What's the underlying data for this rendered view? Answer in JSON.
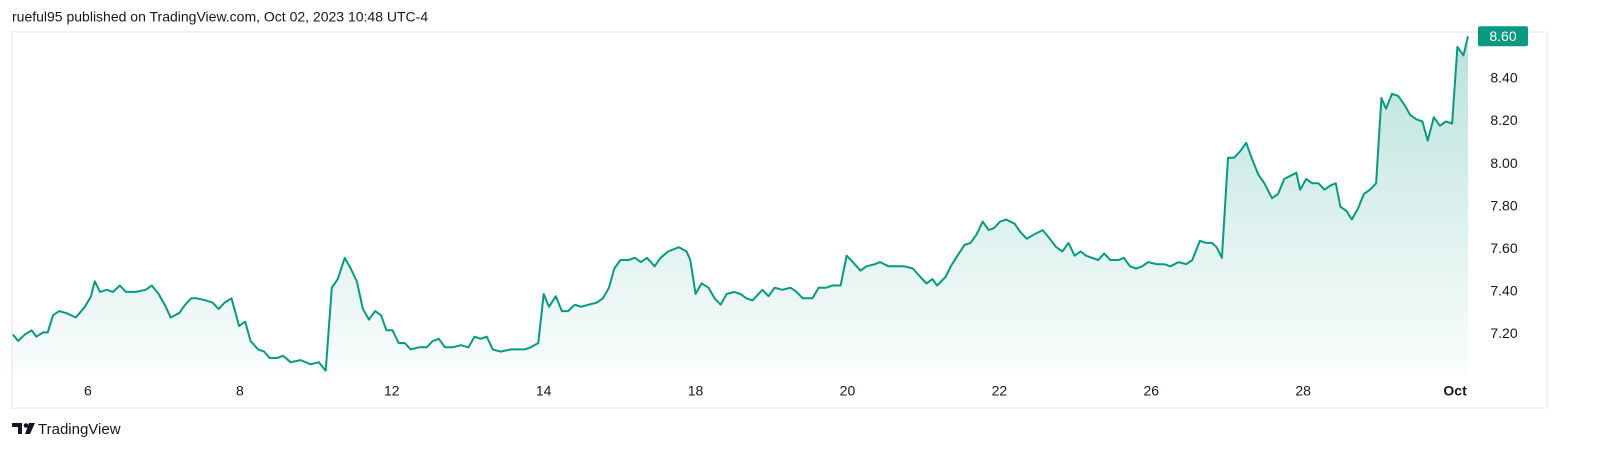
{
  "header": "rueful95 published on TradingView.com, Oct 02, 2023 10:48 UTC-4",
  "footer": "TradingView",
  "chart_data": {
    "type": "area",
    "color": "#089981",
    "last_price_label": "8.60",
    "xlim": [
      0,
      19.17
    ],
    "ylim": [
      7.01,
      8.62
    ],
    "xticks": [
      {
        "value": 1,
        "label": "6"
      },
      {
        "value": 3,
        "label": "8"
      },
      {
        "value": 5,
        "label": "12"
      },
      {
        "value": 7,
        "label": "14"
      },
      {
        "value": 9,
        "label": "18"
      },
      {
        "value": 11,
        "label": "20"
      },
      {
        "value": 13,
        "label": "22"
      },
      {
        "value": 15,
        "label": "26"
      },
      {
        "value": 17,
        "label": "28"
      },
      {
        "value": 19,
        "label": "Oct"
      }
    ],
    "yticks": [
      {
        "value": 7.2,
        "label": "7.20"
      },
      {
        "value": 7.4,
        "label": "7.40"
      },
      {
        "value": 7.6,
        "label": "7.60"
      },
      {
        "value": 7.8,
        "label": "7.80"
      },
      {
        "value": 8.0,
        "label": "8.00"
      },
      {
        "value": 8.2,
        "label": "8.20"
      },
      {
        "value": 8.4,
        "label": "8.40"
      }
    ],
    "x": [
      0.01,
      0.08,
      0.17,
      0.26,
      0.32,
      0.41,
      0.47,
      0.54,
      0.62,
      0.72,
      0.84,
      0.96,
      1.04,
      1.09,
      1.16,
      1.25,
      1.33,
      1.42,
      1.5,
      1.63,
      1.76,
      1.84,
      1.93,
      2.01,
      2.09,
      2.2,
      2.28,
      2.36,
      2.43,
      2.55,
      2.64,
      2.72,
      2.8,
      2.89,
      2.99,
      3.07,
      3.14,
      3.24,
      3.32,
      3.39,
      3.49,
      3.57,
      3.67,
      3.8,
      3.93,
      4.04,
      4.13,
      4.21,
      4.29,
      4.38,
      4.46,
      4.54,
      4.62,
      4.7,
      4.78,
      4.86,
      4.93,
      5.01,
      5.09,
      5.17,
      5.25,
      5.36,
      5.46,
      5.54,
      5.62,
      5.7,
      5.8,
      5.91,
      6.01,
      6.09,
      6.17,
      6.25,
      6.33,
      6.43,
      6.57,
      6.67,
      6.75,
      6.83,
      6.93,
      7.0,
      7.07,
      7.16,
      7.24,
      7.32,
      7.41,
      7.49,
      7.59,
      7.7,
      7.78,
      7.86,
      7.93,
      8.01,
      8.12,
      8.2,
      8.28,
      8.36,
      8.46,
      8.54,
      8.64,
      8.78,
      8.88,
      8.93,
      9.0,
      9.08,
      9.17,
      9.25,
      9.33,
      9.41,
      9.51,
      9.59,
      9.67,
      9.75,
      9.88,
      9.96,
      10.04,
      10.14,
      10.25,
      10.33,
      10.41,
      10.54,
      10.62,
      10.72,
      10.8,
      10.91,
      10.99,
      11.07,
      11.17,
      11.25,
      11.36,
      11.43,
      11.54,
      11.64,
      11.75,
      11.86,
      11.96,
      12.04,
      12.12,
      12.18,
      12.29,
      12.36,
      12.43,
      12.54,
      12.62,
      12.7,
      12.78,
      12.86,
      12.93,
      13.01,
      13.09,
      13.2,
      13.28,
      13.36,
      13.46,
      13.57,
      13.64,
      13.75,
      13.83,
      13.91,
      13.99,
      14.07,
      14.14,
      14.22,
      14.3,
      14.38,
      14.46,
      14.57,
      14.64,
      14.72,
      14.8,
      14.88,
      14.96,
      15.07,
      15.17,
      15.25,
      15.36,
      15.46,
      15.54,
      15.64,
      15.72,
      15.8,
      15.86,
      15.93,
      16.01,
      16.09,
      16.17,
      16.25,
      16.33,
      16.41,
      16.49,
      16.59,
      16.67,
      16.75,
      16.86,
      16.91,
      16.96,
      17.04,
      17.12,
      17.2,
      17.28,
      17.36,
      17.43,
      17.49,
      17.57,
      17.64,
      17.72,
      17.8,
      17.88,
      17.96,
      18.03,
      18.09,
      18.17,
      18.25,
      18.33,
      18.41,
      18.49,
      18.57,
      18.64,
      18.72,
      18.8,
      18.88,
      18.96,
      19.03,
      19.11,
      19.17
    ],
    "values": [
      7.2,
      7.17,
      7.2,
      7.22,
      7.19,
      7.21,
      7.21,
      7.29,
      7.31,
      7.3,
      7.28,
      7.33,
      7.38,
      7.45,
      7.4,
      7.41,
      7.4,
      7.43,
      7.4,
      7.4,
      7.41,
      7.43,
      7.39,
      7.34,
      7.28,
      7.3,
      7.34,
      7.37,
      7.37,
      7.36,
      7.35,
      7.32,
      7.35,
      7.37,
      7.24,
      7.26,
      7.17,
      7.13,
      7.12,
      7.09,
      7.09,
      7.1,
      7.07,
      7.08,
      7.06,
      7.07,
      7.03,
      7.42,
      7.46,
      7.56,
      7.51,
      7.45,
      7.32,
      7.27,
      7.31,
      7.29,
      7.22,
      7.22,
      7.16,
      7.16,
      7.13,
      7.14,
      7.14,
      7.17,
      7.18,
      7.14,
      7.14,
      7.15,
      7.14,
      7.19,
      7.18,
      7.19,
      7.13,
      7.12,
      7.13,
      7.13,
      7.13,
      7.14,
      7.16,
      7.39,
      7.33,
      7.38,
      7.31,
      7.31,
      7.34,
      7.33,
      7.34,
      7.35,
      7.37,
      7.42,
      7.51,
      7.55,
      7.55,
      7.56,
      7.54,
      7.56,
      7.52,
      7.56,
      7.59,
      7.61,
      7.59,
      7.55,
      7.39,
      7.44,
      7.42,
      7.37,
      7.34,
      7.39,
      7.4,
      7.39,
      7.37,
      7.36,
      7.41,
      7.38,
      7.42,
      7.41,
      7.42,
      7.4,
      7.37,
      7.37,
      7.42,
      7.42,
      7.43,
      7.43,
      7.57,
      7.54,
      7.5,
      7.52,
      7.53,
      7.54,
      7.52,
      7.52,
      7.52,
      7.51,
      7.47,
      7.44,
      7.46,
      7.43,
      7.47,
      7.52,
      7.56,
      7.62,
      7.63,
      7.67,
      7.73,
      7.69,
      7.7,
      7.73,
      7.74,
      7.72,
      7.68,
      7.65,
      7.67,
      7.69,
      7.66,
      7.61,
      7.59,
      7.63,
      7.57,
      7.59,
      7.57,
      7.56,
      7.55,
      7.58,
      7.55,
      7.55,
      7.56,
      7.52,
      7.51,
      7.52,
      7.54,
      7.53,
      7.53,
      7.52,
      7.54,
      7.53,
      7.55,
      7.64,
      7.63,
      7.63,
      7.61,
      7.56,
      8.03,
      8.03,
      8.06,
      8.1,
      8.02,
      7.95,
      7.91,
      7.84,
      7.86,
      7.93,
      7.95,
      7.96,
      7.88,
      7.93,
      7.91,
      7.91,
      7.88,
      7.9,
      7.91,
      7.8,
      7.78,
      7.74,
      7.79,
      7.86,
      7.88,
      7.91,
      8.31,
      8.26,
      8.33,
      8.32,
      8.28,
      8.23,
      8.21,
      8.2,
      8.11,
      8.22,
      8.18,
      8.2,
      8.19,
      8.55,
      8.51,
      8.6
    ]
  }
}
